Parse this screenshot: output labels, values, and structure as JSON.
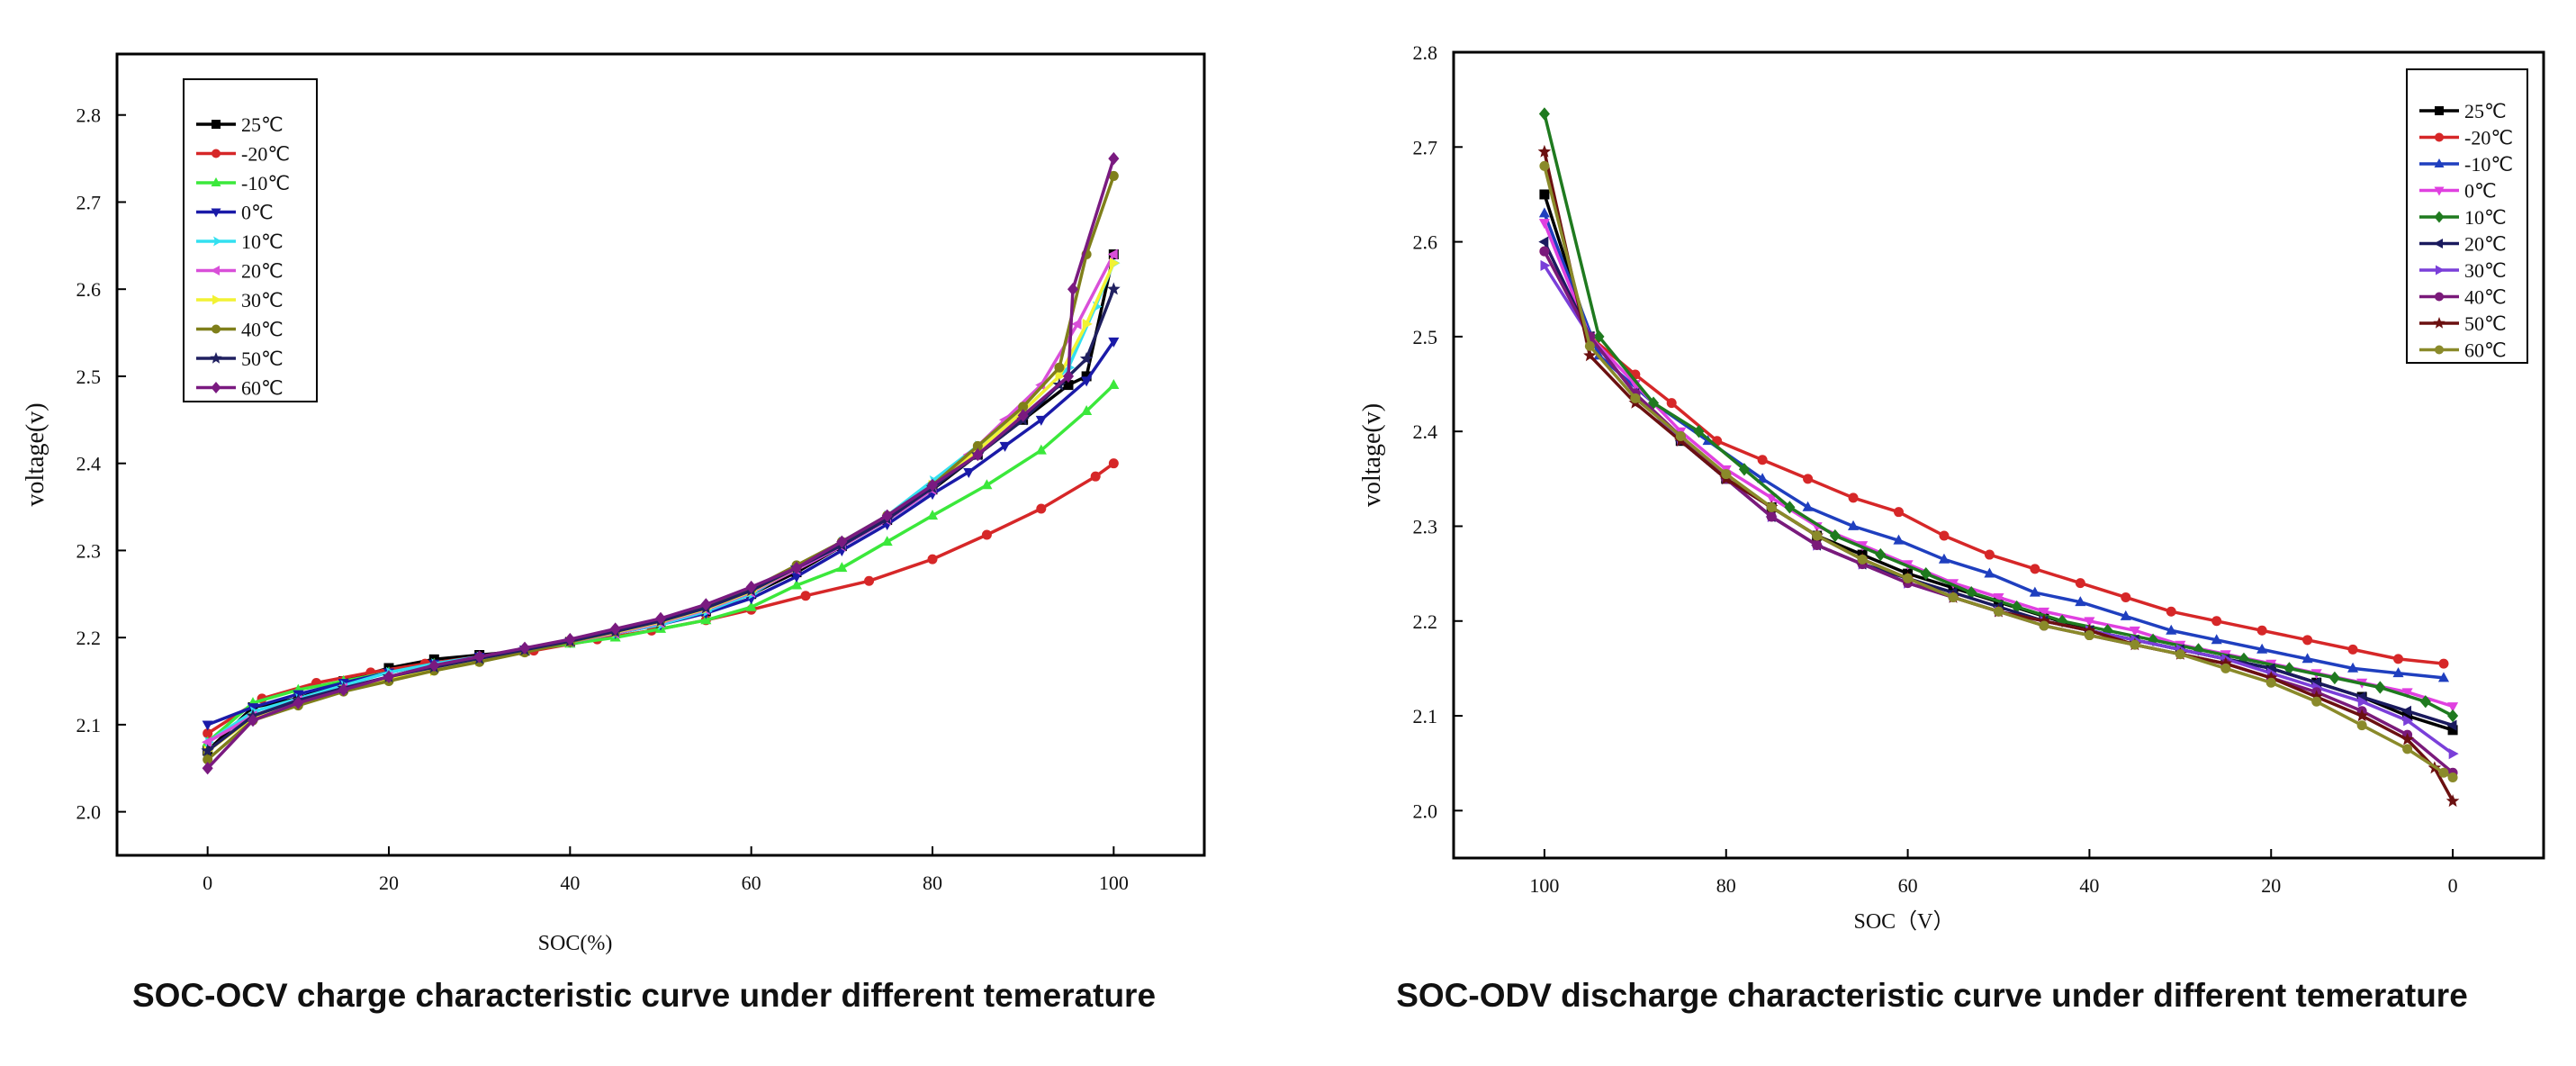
{
  "figure": {
    "caption_left": "SOC-OCV charge characteristic curve under different temerature",
    "caption_right": "SOC-ODV discharge characteristic curve under different temerature"
  },
  "chart_data": [
    {
      "type": "line",
      "title": "",
      "xlabel": "SOC(%)",
      "ylabel": "voltage(v)",
      "xlim": [
        -10,
        110
      ],
      "ylim": [
        1.95,
        2.87
      ],
      "xticks": [
        0,
        20,
        40,
        60,
        80,
        100
      ],
      "yticks": [
        2.0,
        2.1,
        2.2,
        2.3,
        2.4,
        2.5,
        2.6,
        2.7,
        2.8
      ],
      "ytick_labels": [
        "2.0",
        "2.1",
        "2.2",
        "2.3",
        "2.4",
        "2.5",
        "2.6",
        "2.7",
        "2.8"
      ],
      "x_reversed": false,
      "legend_position": "top-left",
      "grid": false,
      "series": [
        {
          "name": "25℃",
          "color": "#000000",
          "marker": "square",
          "x": [
            0,
            5,
            10,
            15,
            20,
            25,
            30,
            35,
            40,
            45,
            50,
            55,
            60,
            65,
            70,
            75,
            80,
            85,
            90,
            95,
            97,
            100
          ],
          "y": [
            2.07,
            2.12,
            2.13,
            2.15,
            2.165,
            2.175,
            2.18,
            2.185,
            2.195,
            2.205,
            2.215,
            2.23,
            2.25,
            2.275,
            2.305,
            2.335,
            2.37,
            2.41,
            2.45,
            2.49,
            2.5,
            2.64
          ]
        },
        {
          "name": "-20℃",
          "color": "#d62728",
          "marker": "circle",
          "x": [
            0,
            6,
            12,
            18,
            24,
            30,
            36,
            43,
            49,
            55,
            60,
            66,
            73,
            80,
            86,
            92,
            98,
            100
          ],
          "y": [
            2.09,
            2.13,
            2.148,
            2.16,
            2.17,
            2.178,
            2.185,
            2.198,
            2.208,
            2.22,
            2.232,
            2.248,
            2.265,
            2.29,
            2.318,
            2.348,
            2.385,
            2.4
          ]
        },
        {
          "name": "-10℃",
          "color": "#3be83b",
          "marker": "triangle",
          "x": [
            0,
            5,
            10,
            15,
            20,
            25,
            30,
            35,
            40,
            45,
            50,
            55,
            60,
            65,
            70,
            75,
            80,
            86,
            92,
            97,
            100
          ],
          "y": [
            2.08,
            2.125,
            2.14,
            2.15,
            2.16,
            2.17,
            2.178,
            2.185,
            2.193,
            2.2,
            2.21,
            2.22,
            2.235,
            2.26,
            2.28,
            2.31,
            2.34,
            2.375,
            2.415,
            2.46,
            2.49
          ]
        },
        {
          "name": "0℃",
          "color": "#1a1aa8",
          "marker": "triangle-down",
          "x": [
            0,
            5,
            10,
            15,
            20,
            25,
            30,
            35,
            40,
            45,
            50,
            55,
            60,
            65,
            70,
            75,
            80,
            84,
            88,
            92,
            97,
            100
          ],
          "y": [
            2.1,
            2.12,
            2.135,
            2.148,
            2.16,
            2.17,
            2.178,
            2.186,
            2.195,
            2.205,
            2.215,
            2.228,
            2.245,
            2.27,
            2.3,
            2.33,
            2.365,
            2.39,
            2.42,
            2.45,
            2.495,
            2.54
          ]
        },
        {
          "name": "10℃",
          "color": "#33e0f0",
          "marker": "arrow",
          "x": [
            0,
            5,
            10,
            15,
            20,
            25,
            30,
            35,
            40,
            45,
            50,
            55,
            60,
            65,
            70,
            75,
            80,
            85,
            90,
            95,
            98,
            100
          ],
          "y": [
            2.08,
            2.115,
            2.13,
            2.145,
            2.16,
            2.17,
            2.178,
            2.186,
            2.195,
            2.205,
            2.215,
            2.23,
            2.25,
            2.28,
            2.31,
            2.34,
            2.38,
            2.42,
            2.46,
            2.51,
            2.58,
            2.63
          ]
        },
        {
          "name": "20℃",
          "color": "#d94fd9",
          "marker": "triangle-left",
          "x": [
            0,
            5,
            10,
            15,
            20,
            25,
            30,
            35,
            40,
            45,
            50,
            55,
            60,
            65,
            70,
            75,
            80,
            84,
            88,
            92,
            96,
            100
          ],
          "y": [
            2.08,
            2.11,
            2.128,
            2.142,
            2.155,
            2.165,
            2.175,
            2.185,
            2.195,
            2.205,
            2.217,
            2.232,
            2.252,
            2.278,
            2.305,
            2.335,
            2.37,
            2.41,
            2.45,
            2.49,
            2.56,
            2.64
          ]
        },
        {
          "name": "30℃",
          "color": "#f2f233",
          "marker": "triangle-right",
          "x": [
            0,
            5,
            10,
            15,
            20,
            25,
            30,
            35,
            40,
            45,
            50,
            55,
            60,
            65,
            70,
            75,
            80,
            85,
            90,
            94,
            97,
            100
          ],
          "y": [
            2.07,
            2.108,
            2.125,
            2.14,
            2.152,
            2.162,
            2.173,
            2.184,
            2.195,
            2.206,
            2.218,
            2.233,
            2.253,
            2.28,
            2.308,
            2.338,
            2.375,
            2.415,
            2.46,
            2.5,
            2.56,
            2.63
          ]
        },
        {
          "name": "40℃",
          "color": "#7f7f1a",
          "marker": "circle",
          "x": [
            0,
            5,
            10,
            15,
            20,
            25,
            30,
            35,
            40,
            45,
            50,
            55,
            60,
            65,
            70,
            75,
            80,
            85,
            90,
            94,
            97,
            100
          ],
          "y": [
            2.06,
            2.105,
            2.122,
            2.138,
            2.15,
            2.162,
            2.172,
            2.183,
            2.195,
            2.207,
            2.22,
            2.236,
            2.256,
            2.283,
            2.31,
            2.34,
            2.375,
            2.42,
            2.465,
            2.51,
            2.64,
            2.73
          ]
        },
        {
          "name": "50℃",
          "color": "#202060",
          "marker": "star",
          "x": [
            0,
            5,
            10,
            15,
            20,
            25,
            30,
            35,
            40,
            45,
            50,
            55,
            60,
            65,
            70,
            75,
            80,
            85,
            90,
            94,
            97,
            100
          ],
          "y": [
            2.07,
            2.11,
            2.128,
            2.142,
            2.155,
            2.166,
            2.176,
            2.186,
            2.196,
            2.207,
            2.219,
            2.234,
            2.254,
            2.28,
            2.306,
            2.336,
            2.372,
            2.41,
            2.45,
            2.49,
            2.52,
            2.6
          ]
        },
        {
          "name": "60℃",
          "color": "#7a1a80",
          "marker": "diamond",
          "x": [
            0,
            5,
            10,
            15,
            20,
            25,
            30,
            35,
            40,
            45,
            50,
            55,
            60,
            65,
            70,
            75,
            80,
            85,
            90,
            95,
            95.5,
            100
          ],
          "y": [
            2.05,
            2.105,
            2.125,
            2.14,
            2.155,
            2.168,
            2.178,
            2.188,
            2.198,
            2.21,
            2.222,
            2.238,
            2.258,
            2.28,
            2.31,
            2.34,
            2.375,
            2.41,
            2.455,
            2.5,
            2.6,
            2.75
          ]
        }
      ]
    },
    {
      "type": "line",
      "title": "",
      "xlabel": "SOC（V）",
      "ylabel": "voltage(v)",
      "xlim": [
        110,
        -10
      ],
      "ylim": [
        1.95,
        2.8
      ],
      "xticks": [
        100,
        80,
        60,
        40,
        20,
        0
      ],
      "yticks": [
        2.0,
        2.1,
        2.2,
        2.3,
        2.4,
        2.5,
        2.6,
        2.7,
        2.8
      ],
      "ytick_labels": [
        "2.0",
        "2.1",
        "2.2",
        "2.3",
        "2.4",
        "2.5",
        "2.6",
        "2.7",
        "2.8"
      ],
      "x_reversed": true,
      "legend_position": "top-right",
      "grid": false,
      "series": [
        {
          "name": "25℃",
          "color": "#000000",
          "marker": "square",
          "x": [
            100,
            95,
            90,
            85,
            80,
            75,
            70,
            65,
            60,
            55,
            50,
            45,
            40,
            35,
            30,
            25,
            20,
            15,
            10,
            5,
            0
          ],
          "y": [
            2.65,
            2.5,
            2.44,
            2.39,
            2.35,
            2.32,
            2.29,
            2.27,
            2.25,
            2.235,
            2.22,
            2.205,
            2.19,
            2.18,
            2.17,
            2.16,
            2.15,
            2.135,
            2.12,
            2.1,
            2.085
          ]
        },
        {
          "name": "-20℃",
          "color": "#d62728",
          "marker": "circle",
          "x": [
            100,
            95,
            90,
            86,
            81,
            76,
            71,
            66,
            61,
            56,
            51,
            46,
            41,
            36,
            31,
            26,
            21,
            16,
            11,
            6,
            1
          ],
          "y": [
            2.59,
            2.5,
            2.46,
            2.43,
            2.39,
            2.37,
            2.35,
            2.33,
            2.315,
            2.29,
            2.27,
            2.255,
            2.24,
            2.225,
            2.21,
            2.2,
            2.19,
            2.18,
            2.17,
            2.16,
            2.155
          ]
        },
        {
          "name": "-10℃",
          "color": "#1f3fbf",
          "marker": "triangle",
          "x": [
            100,
            94,
            88,
            82,
            76,
            71,
            66,
            61,
            56,
            51,
            46,
            41,
            36,
            31,
            26,
            21,
            16,
            11,
            6,
            1
          ],
          "y": [
            2.63,
            2.48,
            2.43,
            2.39,
            2.35,
            2.32,
            2.3,
            2.285,
            2.265,
            2.25,
            2.23,
            2.22,
            2.205,
            2.19,
            2.18,
            2.17,
            2.16,
            2.15,
            2.145,
            2.14
          ]
        },
        {
          "name": "0℃",
          "color": "#e040e0",
          "marker": "triangle-down",
          "x": [
            100,
            95,
            90,
            85,
            80,
            75,
            70,
            65,
            60,
            55,
            50,
            45,
            40,
            35,
            30,
            25,
            20,
            15,
            10,
            5,
            0
          ],
          "y": [
            2.62,
            2.5,
            2.45,
            2.4,
            2.36,
            2.33,
            2.3,
            2.28,
            2.26,
            2.24,
            2.225,
            2.21,
            2.2,
            2.19,
            2.175,
            2.165,
            2.155,
            2.145,
            2.135,
            2.125,
            2.11
          ]
        },
        {
          "name": "10℃",
          "color": "#1f7a1f",
          "marker": "diamond",
          "x": [
            100,
            94,
            88,
            83,
            78,
            73,
            68,
            63,
            58,
            53,
            48,
            43,
            38,
            33,
            28,
            23,
            18,
            13,
            8,
            3,
            0
          ],
          "y": [
            2.735,
            2.5,
            2.43,
            2.4,
            2.36,
            2.32,
            2.29,
            2.27,
            2.25,
            2.23,
            2.215,
            2.2,
            2.19,
            2.18,
            2.17,
            2.16,
            2.15,
            2.14,
            2.13,
            2.115,
            2.1
          ]
        },
        {
          "name": "20℃",
          "color": "#1a1a5e",
          "marker": "triangle-left",
          "x": [
            100,
            95,
            90,
            85,
            80,
            75,
            70,
            65,
            60,
            55,
            50,
            45,
            40,
            35,
            30,
            25,
            20,
            15,
            10,
            5,
            0
          ],
          "y": [
            2.6,
            2.5,
            2.44,
            2.39,
            2.35,
            2.31,
            2.28,
            2.26,
            2.245,
            2.23,
            2.215,
            2.2,
            2.19,
            2.18,
            2.17,
            2.16,
            2.15,
            2.135,
            2.12,
            2.105,
            2.09
          ]
        },
        {
          "name": "30℃",
          "color": "#7a3fd9",
          "marker": "triangle-right",
          "x": [
            100,
            95,
            90,
            85,
            80,
            75,
            70,
            65,
            60,
            55,
            50,
            45,
            40,
            35,
            30,
            25,
            20,
            15,
            10,
            5,
            0
          ],
          "y": [
            2.575,
            2.5,
            2.44,
            2.39,
            2.35,
            2.31,
            2.28,
            2.26,
            2.24,
            2.225,
            2.21,
            2.2,
            2.19,
            2.18,
            2.17,
            2.16,
            2.145,
            2.13,
            2.115,
            2.095,
            2.06
          ]
        },
        {
          "name": "40℃",
          "color": "#7a1a7a",
          "marker": "circle",
          "x": [
            100,
            95,
            90,
            85,
            80,
            75,
            70,
            65,
            60,
            55,
            50,
            45,
            40,
            35,
            30,
            25,
            20,
            15,
            10,
            5,
            0
          ],
          "y": [
            2.59,
            2.5,
            2.44,
            2.395,
            2.35,
            2.31,
            2.28,
            2.26,
            2.24,
            2.225,
            2.21,
            2.195,
            2.185,
            2.175,
            2.165,
            2.155,
            2.14,
            2.125,
            2.105,
            2.08,
            2.04
          ]
        },
        {
          "name": "50℃",
          "color": "#6b1010",
          "marker": "star",
          "x": [
            100,
            95,
            90,
            85,
            80,
            75,
            70,
            65,
            60,
            55,
            50,
            45,
            40,
            35,
            30,
            25,
            20,
            15,
            10,
            5,
            2,
            0
          ],
          "y": [
            2.695,
            2.48,
            2.43,
            2.39,
            2.35,
            2.32,
            2.29,
            2.265,
            2.245,
            2.225,
            2.21,
            2.2,
            2.19,
            2.175,
            2.165,
            2.155,
            2.14,
            2.12,
            2.1,
            2.075,
            2.045,
            2.01
          ]
        },
        {
          "name": "60℃",
          "color": "#8a8a2a",
          "marker": "circle",
          "x": [
            100,
            95,
            90,
            85,
            80,
            75,
            70,
            65,
            60,
            55,
            50,
            45,
            40,
            35,
            30,
            25,
            20,
            15,
            10,
            5,
            1,
            0
          ],
          "y": [
            2.68,
            2.49,
            2.435,
            2.395,
            2.355,
            2.32,
            2.29,
            2.265,
            2.245,
            2.225,
            2.21,
            2.195,
            2.185,
            2.175,
            2.165,
            2.15,
            2.135,
            2.115,
            2.09,
            2.065,
            2.04,
            2.035
          ]
        }
      ]
    }
  ]
}
